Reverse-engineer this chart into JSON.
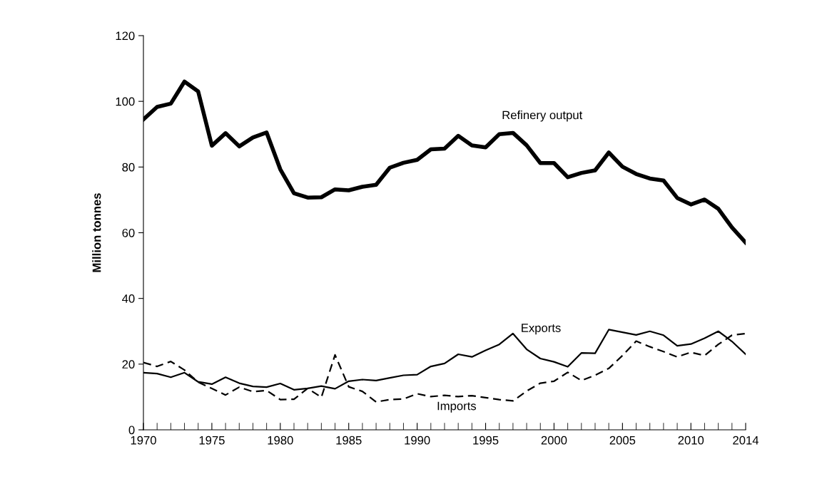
{
  "chart_data": {
    "type": "line",
    "ylabel": "Million tonnes",
    "x": [
      1970,
      1971,
      1972,
      1973,
      1974,
      1975,
      1976,
      1977,
      1978,
      1979,
      1980,
      1981,
      1982,
      1983,
      1984,
      1985,
      1986,
      1987,
      1988,
      1989,
      1990,
      1991,
      1992,
      1993,
      1994,
      1995,
      1996,
      1997,
      1998,
      1999,
      2000,
      2001,
      2002,
      2003,
      2004,
      2005,
      2006,
      2007,
      2008,
      2009,
      2010,
      2011,
      2012,
      2013,
      2014
    ],
    "series": [
      {
        "name": "Refinery output",
        "color": "#000000",
        "line_style": "solid",
        "values": [
          94.5,
          98.3,
          99.3,
          106,
          103,
          86.5,
          90.3,
          86.3,
          89,
          90.5,
          79.3,
          72,
          70.7,
          70.8,
          73.2,
          72.9,
          74,
          74.6,
          79.8,
          81.3,
          82.2,
          85.4,
          85.6,
          89.5,
          86.6,
          86,
          90,
          90.4,
          86.6,
          81.2,
          81.2,
          76.9,
          78.2,
          79,
          84.4,
          80.1,
          77.9,
          76.5,
          75.9,
          70.6,
          68.6,
          70.1,
          67.3,
          61.6,
          57
        ]
      },
      {
        "name": "Exports",
        "color": "#000000",
        "line_style": "solid",
        "values": [
          17.4,
          17.1,
          16,
          17.4,
          14.6,
          13.9,
          16,
          14.2,
          13.2,
          13,
          14.1,
          12.2,
          12.6,
          13.3,
          12.5,
          14.8,
          15.3,
          15,
          15.8,
          16.6,
          16.8,
          19.3,
          20.2,
          23,
          22.2,
          24.2,
          26,
          29.3,
          24.5,
          21.7,
          20.7,
          19.2,
          23.4,
          23.3,
          30.5,
          29.7,
          28.9,
          30,
          28.8,
          25.6,
          26.1,
          27.9,
          30,
          26.9,
          23
        ]
      },
      {
        "name": "Imports",
        "color": "#000000",
        "line_style": "dashed",
        "values": [
          20.5,
          19.3,
          20.8,
          18.2,
          14.5,
          12.6,
          10.6,
          13,
          11.6,
          12,
          9.2,
          9.3,
          12.6,
          9.9,
          22.8,
          13.1,
          11.7,
          8.5,
          9.2,
          9.4,
          11,
          10.1,
          10.5,
          10.1,
          10.4,
          9.8,
          9.2,
          8.8,
          11.8,
          14.2,
          14.8,
          17.5,
          15,
          16.6,
          18.7,
          22.6,
          27,
          25.3,
          23.8,
          22.2,
          23.6,
          22.6,
          26,
          28.8,
          29.3
        ]
      }
    ],
    "xlim": [
      1970,
      2014
    ],
    "xticks": [
      1970,
      1975,
      1980,
      1985,
      1990,
      1995,
      2000,
      2005,
      2010,
      2014
    ],
    "ylim": [
      0,
      120
    ],
    "yticks": [
      0,
      20,
      40,
      60,
      80,
      100,
      120
    ],
    "grid": false,
    "legend": false,
    "marker": "none"
  }
}
